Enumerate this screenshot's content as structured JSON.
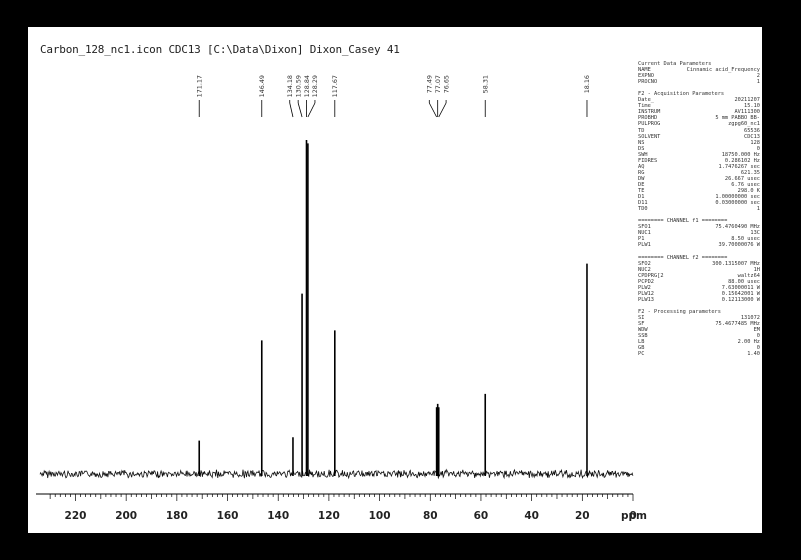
{
  "title": "Carbon_128_nc1.icon CDC13 [C:\\Data\\Dixon] Dixon_Casey 41",
  "params": [
    {
      "t": "Current Data Parameters"
    },
    {
      "k": "NAME",
      "v": "Cinnamic acid_Frequency"
    },
    {
      "k": "EXPNO",
      "v": "2"
    },
    {
      "k": "PROCNO",
      "v": "1"
    },
    {
      "t": ""
    },
    {
      "t": "F2 - Acquisition Parameters"
    },
    {
      "k": "Date_",
      "v": "20211207"
    },
    {
      "k": "Time",
      "v": "15.10"
    },
    {
      "k": "INSTRUM",
      "v": "AV111300"
    },
    {
      "k": "PROBHD",
      "v": "5 mm PABBO BB-"
    },
    {
      "k": "PULPROG",
      "v": "zgpg60_nc1"
    },
    {
      "k": "TD",
      "v": "65536"
    },
    {
      "k": "SOLVENT",
      "v": "CDC13"
    },
    {
      "k": "NS",
      "v": "128"
    },
    {
      "k": "DS",
      "v": "0"
    },
    {
      "k": "SWH",
      "v": "18750.000 Hz"
    },
    {
      "k": "FIDRES",
      "v": "0.286102 Hz"
    },
    {
      "k": "AQ",
      "v": "1.7476267 sec"
    },
    {
      "k": "RG",
      "v": "621.35"
    },
    {
      "k": "DW",
      "v": "26.667 usec"
    },
    {
      "k": "DE",
      "v": "6.76 usec"
    },
    {
      "k": "TE",
      "v": "298.0 K"
    },
    {
      "k": "D1",
      "v": "1.00000000 sec"
    },
    {
      "k": "D11",
      "v": "0.03000000 sec"
    },
    {
      "k": "TD0",
      "v": "1"
    },
    {
      "t": ""
    },
    {
      "t": "======== CHANNEL f1 ========"
    },
    {
      "k": "SFO1",
      "v": "75.4760490 MHz"
    },
    {
      "k": "NUC1",
      "v": "13C"
    },
    {
      "k": "P1",
      "v": "8.50 usec"
    },
    {
      "k": "PLW1",
      "v": "39.70000076 W"
    },
    {
      "t": ""
    },
    {
      "t": "======== CHANNEL f2 ========"
    },
    {
      "k": "SFO2",
      "v": "300.1315007 MHz"
    },
    {
      "k": "NUC2",
      "v": "1H"
    },
    {
      "k": "CPDPRG[2",
      "v": "waltz64"
    },
    {
      "k": "PCPD2",
      "v": "88.00 usec"
    },
    {
      "k": "PLW2",
      "v": "7.63000011 W"
    },
    {
      "k": "PLW12",
      "v": "0.15642001 W"
    },
    {
      "k": "PLW13",
      "v": "0.12113000 W"
    },
    {
      "t": ""
    },
    {
      "t": "F2 - Processing parameters"
    },
    {
      "k": "SI",
      "v": "131072"
    },
    {
      "k": "SF",
      "v": "75.4677485 MHz"
    },
    {
      "k": "WDW",
      "v": "EM"
    },
    {
      "k": "SSB",
      "v": "0"
    },
    {
      "k": "LB",
      "v": "2.00 Hz"
    },
    {
      "k": "GB",
      "v": "0"
    },
    {
      "k": "PC",
      "v": "1.40"
    }
  ],
  "chart_data": {
    "type": "line",
    "title": "Carbon_128_nc1.icon CDC13 [C:\\Data\\Dixon] Dixon_Casey 41",
    "xlabel": "ppm",
    "ylabel": "",
    "xlim": [
      234,
      0
    ],
    "x_reversed": true,
    "ylim": [
      0,
      1
    ],
    "grid": false,
    "x_ticks": [
      220,
      200,
      180,
      160,
      140,
      120,
      100,
      80,
      60,
      40,
      20,
      0
    ],
    "x_tick_labels": [
      "220",
      "200",
      "180",
      "160",
      "140",
      "120",
      "100",
      "80",
      "60",
      "40",
      "20",
      "0"
    ],
    "peak_labels": [
      "171.17",
      "146.49",
      "134.18",
      "130.59",
      "128.84",
      "128.29",
      "117.67",
      "77.49",
      "77.07",
      "76.65",
      "58.31",
      "18.16"
    ],
    "peaks": [
      {
        "x": 171.17,
        "y": 0.1
      },
      {
        "x": 146.49,
        "y": 0.4
      },
      {
        "x": 134.18,
        "y": 0.11
      },
      {
        "x": 130.59,
        "y": 0.54
      },
      {
        "x": 128.84,
        "y": 1.0
      },
      {
        "x": 128.29,
        "y": 0.99
      },
      {
        "x": 117.67,
        "y": 0.43
      },
      {
        "x": 77.49,
        "y": 0.2
      },
      {
        "x": 77.07,
        "y": 0.21
      },
      {
        "x": 76.65,
        "y": 0.2
      },
      {
        "x": 58.31,
        "y": 0.24
      },
      {
        "x": 18.16,
        "y": 0.63
      }
    ]
  }
}
